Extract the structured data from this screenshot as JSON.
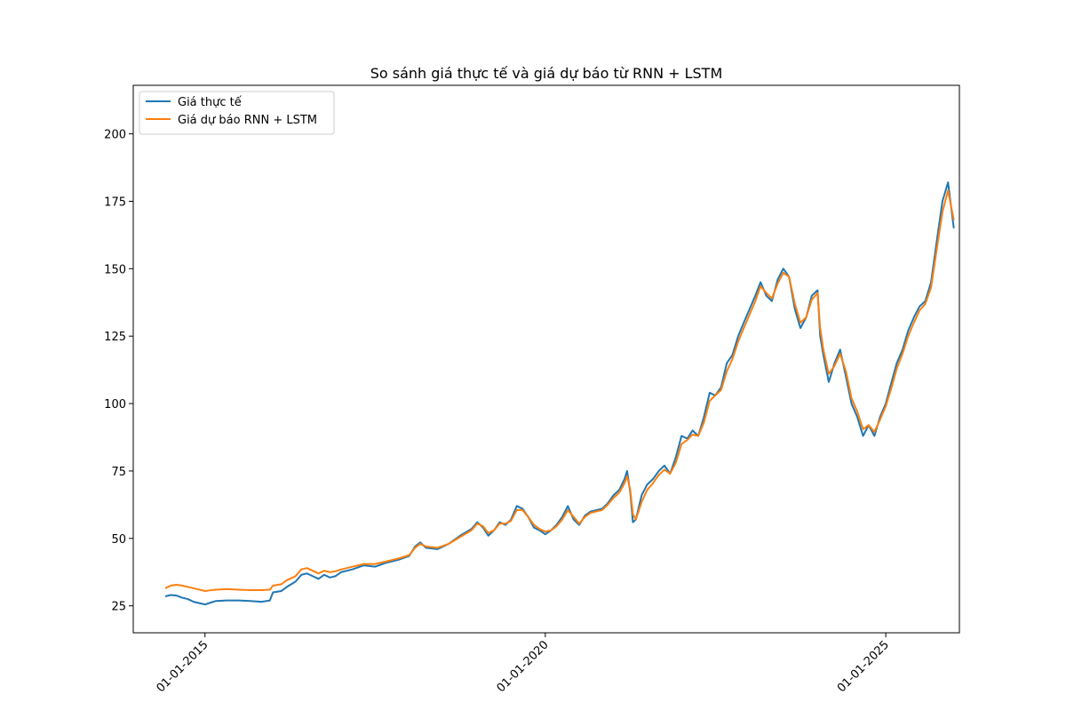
{
  "chart_data": {
    "type": "line",
    "title": "So sánh giá thực tế và giá dự báo từ RNN + LSTM",
    "xlabel": "",
    "ylabel": "",
    "x_ticks": [
      "01-01-2015",
      "01-01-2020",
      "01-01-2025"
    ],
    "y_ticks": [
      25,
      50,
      75,
      100,
      125,
      150,
      175,
      200
    ],
    "xlim": [
      "2013-12-12",
      "2026-01-31"
    ],
    "ylim": [
      15,
      218
    ],
    "legend_position": "top-left",
    "grid": false,
    "series": [
      {
        "name": "Giá thực tế",
        "color": "#1f77b4",
        "points": [
          [
            "2014-06-02",
            28.5
          ],
          [
            "2014-07-01",
            29.0
          ],
          [
            "2014-08-01",
            28.8
          ],
          [
            "2014-09-01",
            28.0
          ],
          [
            "2014-10-01",
            27.5
          ],
          [
            "2014-11-01",
            26.5
          ],
          [
            "2014-12-01",
            26.0
          ],
          [
            "2015-01-01",
            25.5
          ],
          [
            "2015-02-01",
            26.2
          ],
          [
            "2015-03-01",
            26.8
          ],
          [
            "2015-05-01",
            27.0
          ],
          [
            "2015-07-01",
            27.0
          ],
          [
            "2015-09-01",
            26.8
          ],
          [
            "2015-11-01",
            26.5
          ],
          [
            "2015-12-15",
            27.0
          ],
          [
            "2016-01-01",
            30.0
          ],
          [
            "2016-02-15",
            30.5
          ],
          [
            "2016-03-15",
            32.0
          ],
          [
            "2016-05-01",
            34.0
          ],
          [
            "2016-06-01",
            36.5
          ],
          [
            "2016-07-01",
            37.0
          ],
          [
            "2016-08-01",
            36.0
          ],
          [
            "2016-09-01",
            35.0
          ],
          [
            "2016-10-01",
            36.5
          ],
          [
            "2016-11-01",
            35.5
          ],
          [
            "2016-12-01",
            36.0
          ],
          [
            "2017-01-01",
            37.5
          ],
          [
            "2017-03-01",
            38.5
          ],
          [
            "2017-05-01",
            40.0
          ],
          [
            "2017-07-01",
            39.5
          ],
          [
            "2017-09-01",
            41.0
          ],
          [
            "2017-11-01",
            42.0
          ],
          [
            "2018-01-01",
            43.5
          ],
          [
            "2018-02-01",
            47.0
          ],
          [
            "2018-03-01",
            48.5
          ],
          [
            "2018-04-01",
            46.5
          ],
          [
            "2018-06-01",
            46.0
          ],
          [
            "2018-08-01",
            48.0
          ],
          [
            "2018-10-01",
            51.0
          ],
          [
            "2018-12-01",
            53.5
          ],
          [
            "2019-01-01",
            56.0
          ],
          [
            "2019-02-01",
            54.0
          ],
          [
            "2019-03-01",
            51.0
          ],
          [
            "2019-04-01",
            53.0
          ],
          [
            "2019-05-01",
            56.0
          ],
          [
            "2019-06-01",
            55.0
          ],
          [
            "2019-07-01",
            57.0
          ],
          [
            "2019-08-01",
            62.0
          ],
          [
            "2019-09-01",
            61.0
          ],
          [
            "2019-10-01",
            58.0
          ],
          [
            "2019-11-01",
            54.0
          ],
          [
            "2019-12-01",
            53.0
          ],
          [
            "2020-01-01",
            51.5
          ],
          [
            "2020-02-01",
            53.0
          ],
          [
            "2020-03-01",
            55.0
          ],
          [
            "2020-04-01",
            58.0
          ],
          [
            "2020-05-01",
            62.0
          ],
          [
            "2020-06-01",
            57.0
          ],
          [
            "2020-07-01",
            55.0
          ],
          [
            "2020-08-01",
            58.5
          ],
          [
            "2020-09-01",
            60.0
          ],
          [
            "2020-10-01",
            60.5
          ],
          [
            "2020-11-01",
            61.0
          ],
          [
            "2020-12-01",
            63.0
          ],
          [
            "2021-01-01",
            66.0
          ],
          [
            "2021-02-01",
            68.0
          ],
          [
            "2021-03-01",
            72.0
          ],
          [
            "2021-03-15",
            75.0
          ],
          [
            "2021-04-01",
            67.0
          ],
          [
            "2021-04-15",
            56.0
          ],
          [
            "2021-05-01",
            57.0
          ],
          [
            "2021-06-01",
            66.0
          ],
          [
            "2021-07-01",
            70.0
          ],
          [
            "2021-08-01",
            72.0
          ],
          [
            "2021-09-01",
            75.0
          ],
          [
            "2021-10-01",
            77.0
          ],
          [
            "2021-11-01",
            74.0
          ],
          [
            "2021-12-01",
            80.0
          ],
          [
            "2022-01-01",
            88.0
          ],
          [
            "2022-02-01",
            87.0
          ],
          [
            "2022-03-01",
            90.0
          ],
          [
            "2022-04-01",
            88.0
          ],
          [
            "2022-05-01",
            95.0
          ],
          [
            "2022-06-01",
            104.0
          ],
          [
            "2022-07-01",
            103.0
          ],
          [
            "2022-08-01",
            106.0
          ],
          [
            "2022-09-01",
            115.0
          ],
          [
            "2022-10-01",
            118.0
          ],
          [
            "2022-11-01",
            125.0
          ],
          [
            "2022-12-01",
            130.0
          ],
          [
            "2023-01-01",
            135.0
          ],
          [
            "2023-02-01",
            140.0
          ],
          [
            "2023-03-01",
            145.0
          ],
          [
            "2023-04-01",
            140.0
          ],
          [
            "2023-05-01",
            138.0
          ],
          [
            "2023-06-01",
            146.0
          ],
          [
            "2023-07-01",
            150.0
          ],
          [
            "2023-08-01",
            147.0
          ],
          [
            "2023-09-01",
            135.0
          ],
          [
            "2023-10-01",
            128.0
          ],
          [
            "2023-11-01",
            132.0
          ],
          [
            "2023-12-01",
            140.0
          ],
          [
            "2024-01-01",
            142.0
          ],
          [
            "2024-01-15",
            125.0
          ],
          [
            "2024-02-01",
            118.0
          ],
          [
            "2024-03-01",
            108.0
          ],
          [
            "2024-04-01",
            115.0
          ],
          [
            "2024-05-01",
            120.0
          ],
          [
            "2024-06-01",
            110.0
          ],
          [
            "2024-07-01",
            100.0
          ],
          [
            "2024-08-01",
            95.0
          ],
          [
            "2024-09-01",
            88.0
          ],
          [
            "2024-10-01",
            92.0
          ],
          [
            "2024-11-01",
            88.0
          ],
          [
            "2024-12-01",
            95.0
          ],
          [
            "2025-01-01",
            100.0
          ],
          [
            "2025-02-01",
            108.0
          ],
          [
            "2025-03-01",
            115.0
          ],
          [
            "2025-04-01",
            120.0
          ],
          [
            "2025-05-01",
            127.0
          ],
          [
            "2025-06-01",
            132.0
          ],
          [
            "2025-07-01",
            136.0
          ],
          [
            "2025-08-01",
            138.0
          ],
          [
            "2025-09-01",
            145.0
          ],
          [
            "2025-10-01",
            160.0
          ],
          [
            "2025-11-01",
            175.0
          ],
          [
            "2025-12-01",
            182.0
          ],
          [
            "2026-01-01",
            165.0
          ]
        ]
      },
      {
        "name": "Giá dự báo RNN + LSTM",
        "color": "#ff7f0e",
        "points": [
          [
            "2014-06-02",
            31.5
          ],
          [
            "2014-07-01",
            32.5
          ],
          [
            "2014-08-01",
            32.8
          ],
          [
            "2014-09-01",
            32.5
          ],
          [
            "2014-10-01",
            32.0
          ],
          [
            "2014-11-01",
            31.5
          ],
          [
            "2014-12-01",
            31.0
          ],
          [
            "2015-01-01",
            30.5
          ],
          [
            "2015-02-01",
            30.8
          ],
          [
            "2015-03-01",
            31.0
          ],
          [
            "2015-05-01",
            31.2
          ],
          [
            "2015-07-01",
            31.0
          ],
          [
            "2015-09-01",
            30.8
          ],
          [
            "2015-11-01",
            30.8
          ],
          [
            "2015-12-15",
            31.0
          ],
          [
            "2016-01-01",
            32.5
          ],
          [
            "2016-02-15",
            33.0
          ],
          [
            "2016-03-15",
            34.5
          ],
          [
            "2016-05-01",
            36.0
          ],
          [
            "2016-06-01",
            38.5
          ],
          [
            "2016-07-01",
            39.0
          ],
          [
            "2016-08-01",
            38.0
          ],
          [
            "2016-09-01",
            37.0
          ],
          [
            "2016-10-01",
            38.0
          ],
          [
            "2016-11-01",
            37.5
          ],
          [
            "2016-12-01",
            37.8
          ],
          [
            "2017-01-01",
            38.5
          ],
          [
            "2017-03-01",
            39.5
          ],
          [
            "2017-05-01",
            40.5
          ],
          [
            "2017-07-01",
            40.5
          ],
          [
            "2017-09-01",
            41.5
          ],
          [
            "2017-11-01",
            42.5
          ],
          [
            "2018-01-01",
            43.8
          ],
          [
            "2018-02-01",
            46.5
          ],
          [
            "2018-03-01",
            48.0
          ],
          [
            "2018-04-01",
            47.0
          ],
          [
            "2018-06-01",
            46.5
          ],
          [
            "2018-08-01",
            48.0
          ],
          [
            "2018-10-01",
            50.5
          ],
          [
            "2018-12-01",
            53.0
          ],
          [
            "2019-01-01",
            55.5
          ],
          [
            "2019-02-01",
            54.5
          ],
          [
            "2019-03-01",
            52.0
          ],
          [
            "2019-04-01",
            53.0
          ],
          [
            "2019-05-01",
            55.5
          ],
          [
            "2019-06-01",
            55.5
          ],
          [
            "2019-07-01",
            56.5
          ],
          [
            "2019-08-01",
            60.5
          ],
          [
            "2019-09-01",
            60.5
          ],
          [
            "2019-10-01",
            58.0
          ],
          [
            "2019-11-01",
            55.0
          ],
          [
            "2019-12-01",
            53.5
          ],
          [
            "2020-01-01",
            52.5
          ],
          [
            "2020-02-01",
            53.0
          ],
          [
            "2020-03-01",
            54.5
          ],
          [
            "2020-04-01",
            57.0
          ],
          [
            "2020-05-01",
            60.5
          ],
          [
            "2020-06-01",
            58.0
          ],
          [
            "2020-07-01",
            55.5
          ],
          [
            "2020-08-01",
            58.0
          ],
          [
            "2020-09-01",
            59.5
          ],
          [
            "2020-10-01",
            60.0
          ],
          [
            "2020-11-01",
            60.5
          ],
          [
            "2020-12-01",
            62.5
          ],
          [
            "2021-01-01",
            65.0
          ],
          [
            "2021-02-01",
            67.0
          ],
          [
            "2021-03-01",
            70.5
          ],
          [
            "2021-03-15",
            73.0
          ],
          [
            "2021-04-01",
            68.0
          ],
          [
            "2021-04-15",
            59.0
          ],
          [
            "2021-05-01",
            57.0
          ],
          [
            "2021-06-01",
            63.5
          ],
          [
            "2021-07-01",
            68.0
          ],
          [
            "2021-08-01",
            70.5
          ],
          [
            "2021-09-01",
            73.5
          ],
          [
            "2021-10-01",
            75.5
          ],
          [
            "2021-11-01",
            74.0
          ],
          [
            "2021-12-01",
            78.0
          ],
          [
            "2022-01-01",
            85.0
          ],
          [
            "2022-02-01",
            86.5
          ],
          [
            "2022-03-01",
            88.5
          ],
          [
            "2022-04-01",
            88.0
          ],
          [
            "2022-05-01",
            93.0
          ],
          [
            "2022-06-01",
            101.0
          ],
          [
            "2022-07-01",
            103.0
          ],
          [
            "2022-08-01",
            105.0
          ],
          [
            "2022-09-01",
            112.0
          ],
          [
            "2022-10-01",
            116.5
          ],
          [
            "2022-11-01",
            123.0
          ],
          [
            "2022-12-01",
            128.0
          ],
          [
            "2023-01-01",
            133.0
          ],
          [
            "2023-02-01",
            138.0
          ],
          [
            "2023-03-01",
            143.5
          ],
          [
            "2023-04-01",
            141.0
          ],
          [
            "2023-05-01",
            139.0
          ],
          [
            "2023-06-01",
            144.5
          ],
          [
            "2023-07-01",
            148.5
          ],
          [
            "2023-08-01",
            147.0
          ],
          [
            "2023-09-01",
            137.0
          ],
          [
            "2023-10-01",
            130.0
          ],
          [
            "2023-11-01",
            132.0
          ],
          [
            "2023-12-01",
            138.5
          ],
          [
            "2024-01-01",
            141.0
          ],
          [
            "2024-01-15",
            128.0
          ],
          [
            "2024-02-01",
            120.0
          ],
          [
            "2024-03-01",
            111.0
          ],
          [
            "2024-04-01",
            114.0
          ],
          [
            "2024-05-01",
            118.5
          ],
          [
            "2024-06-01",
            112.0
          ],
          [
            "2024-07-01",
            102.0
          ],
          [
            "2024-08-01",
            97.0
          ],
          [
            "2024-09-01",
            90.5
          ],
          [
            "2024-10-01",
            92.0
          ],
          [
            "2024-11-01",
            89.5
          ],
          [
            "2024-12-01",
            94.0
          ],
          [
            "2025-01-01",
            99.0
          ],
          [
            "2025-02-01",
            106.0
          ],
          [
            "2025-03-01",
            113.0
          ],
          [
            "2025-04-01",
            118.5
          ],
          [
            "2025-05-01",
            125.0
          ],
          [
            "2025-06-01",
            130.0
          ],
          [
            "2025-07-01",
            134.5
          ],
          [
            "2025-08-01",
            137.0
          ],
          [
            "2025-09-01",
            143.0
          ],
          [
            "2025-10-01",
            157.0
          ],
          [
            "2025-11-01",
            171.0
          ],
          [
            "2025-12-01",
            179.0
          ],
          [
            "2026-01-01",
            168.0
          ]
        ]
      }
    ]
  }
}
